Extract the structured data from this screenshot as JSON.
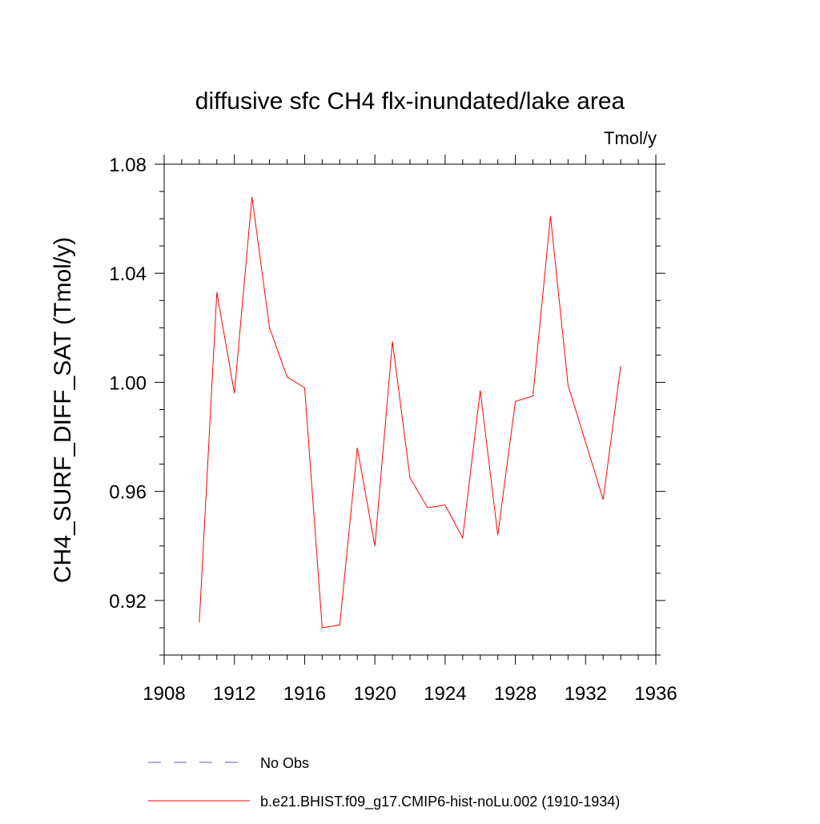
{
  "chart_data": {
    "type": "line",
    "title": "diffusive sfc CH4 flx-inundated/lake area",
    "subtitle": "Tmol/y",
    "ylabel": "CH4_SURF_DIFF_SAT  (Tmol/y)",
    "xlabel": "",
    "xlim": [
      1908,
      1936
    ],
    "ylim": [
      0.9,
      1.08
    ],
    "x_ticks": [
      1908,
      1912,
      1916,
      1920,
      1924,
      1928,
      1932,
      1936
    ],
    "x_tick_labels": [
      "1908",
      "1912",
      "1916",
      "1920",
      "1924",
      "1928",
      "1932",
      "1936"
    ],
    "y_ticks": [
      0.92,
      0.96,
      1.0,
      1.04,
      1.08
    ],
    "y_tick_labels": [
      "0.92",
      "0.96",
      "1.00",
      "1.04",
      "1.08"
    ],
    "grid": false,
    "legend_position": "bottom",
    "series": [
      {
        "name": "b.e21.BHIST.f09_g17.CMIP6-hist-noLu.002 (1910-1934)",
        "color": "#ff0000",
        "style": "solid",
        "x": [
          1910,
          1911,
          1912,
          1913,
          1914,
          1915,
          1916,
          1917,
          1918,
          1919,
          1920,
          1921,
          1922,
          1923,
          1924,
          1925,
          1926,
          1927,
          1928,
          1929,
          1930,
          1931,
          1932,
          1933,
          1934
        ],
        "y": [
          0.912,
          1.033,
          0.996,
          1.068,
          1.02,
          1.002,
          0.998,
          0.91,
          0.911,
          0.976,
          0.94,
          1.015,
          0.965,
          0.954,
          0.955,
          0.943,
          0.997,
          0.944,
          0.993,
          0.995,
          1.061,
          0.999,
          0.978,
          0.957,
          1.006
        ]
      }
    ],
    "legend": [
      {
        "label": "No Obs",
        "color": "#5b5bb5",
        "style": "dashed"
      },
      {
        "label": "b.e21.BHIST.f09_g17.CMIP6-hist-noLu.002 (1910-1934)",
        "color": "#ff0000",
        "style": "solid"
      }
    ]
  }
}
